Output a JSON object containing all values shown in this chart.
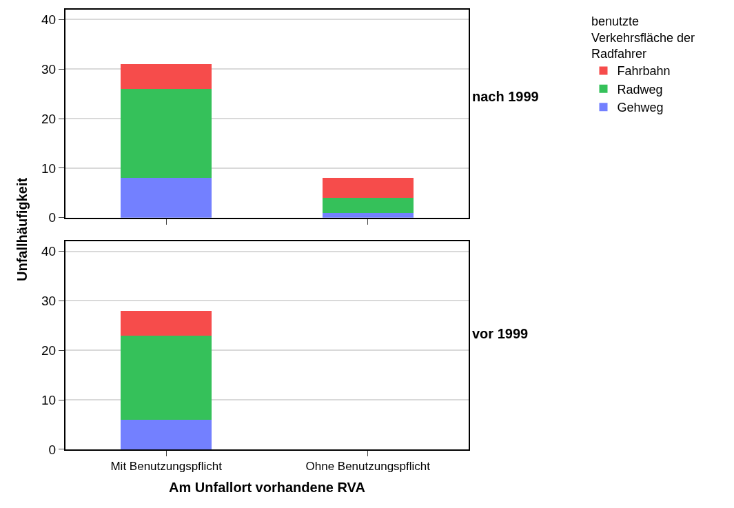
{
  "chart_data": [
    {
      "type": "bar",
      "stacked": true,
      "categories": [
        null,
        null
      ],
      "ylabel": "Unfallhäufigkeit",
      "legend_title": "benutzte Verkehrsfläche der Radfahrer",
      "legend": "top right",
      "annotations": [
        "nach 1999"
      ],
      "ylim": [
        0,
        42
      ],
      "yticks": [
        0,
        10,
        20,
        30,
        40
      ],
      "grid": "y",
      "tick_labels": "y",
      "series": [
        {
          "name": "Gehweg",
          "color": "#7380ff",
          "values": [
            8,
            1
          ]
        },
        {
          "name": "Radweg",
          "color": "#35c15a",
          "values": [
            18,
            3
          ]
        },
        {
          "name": "Fahrbahn",
          "color": "#f64c4b",
          "values": [
            5,
            4
          ]
        }
      ]
    },
    {
      "type": "bar",
      "stacked": true,
      "categories": [
        "Mit Benutzungspflicht",
        "Ohne Benutzungspflicht"
      ],
      "xlabel": "Am Unfallort vorhandene RVA",
      "annotations": [
        "vor 1999"
      ],
      "ylim": [
        0,
        42
      ],
      "yticks": [
        0,
        10,
        20,
        30,
        40
      ],
      "grid": "y",
      "series": [
        {
          "color": "#7380ff",
          "values": [
            6,
            null
          ]
        },
        {
          "color": "#35c15a",
          "values": [
            17,
            null
          ]
        },
        {
          "color": "#f64c4b",
          "values": [
            5,
            null
          ]
        }
      ]
    }
  ]
}
